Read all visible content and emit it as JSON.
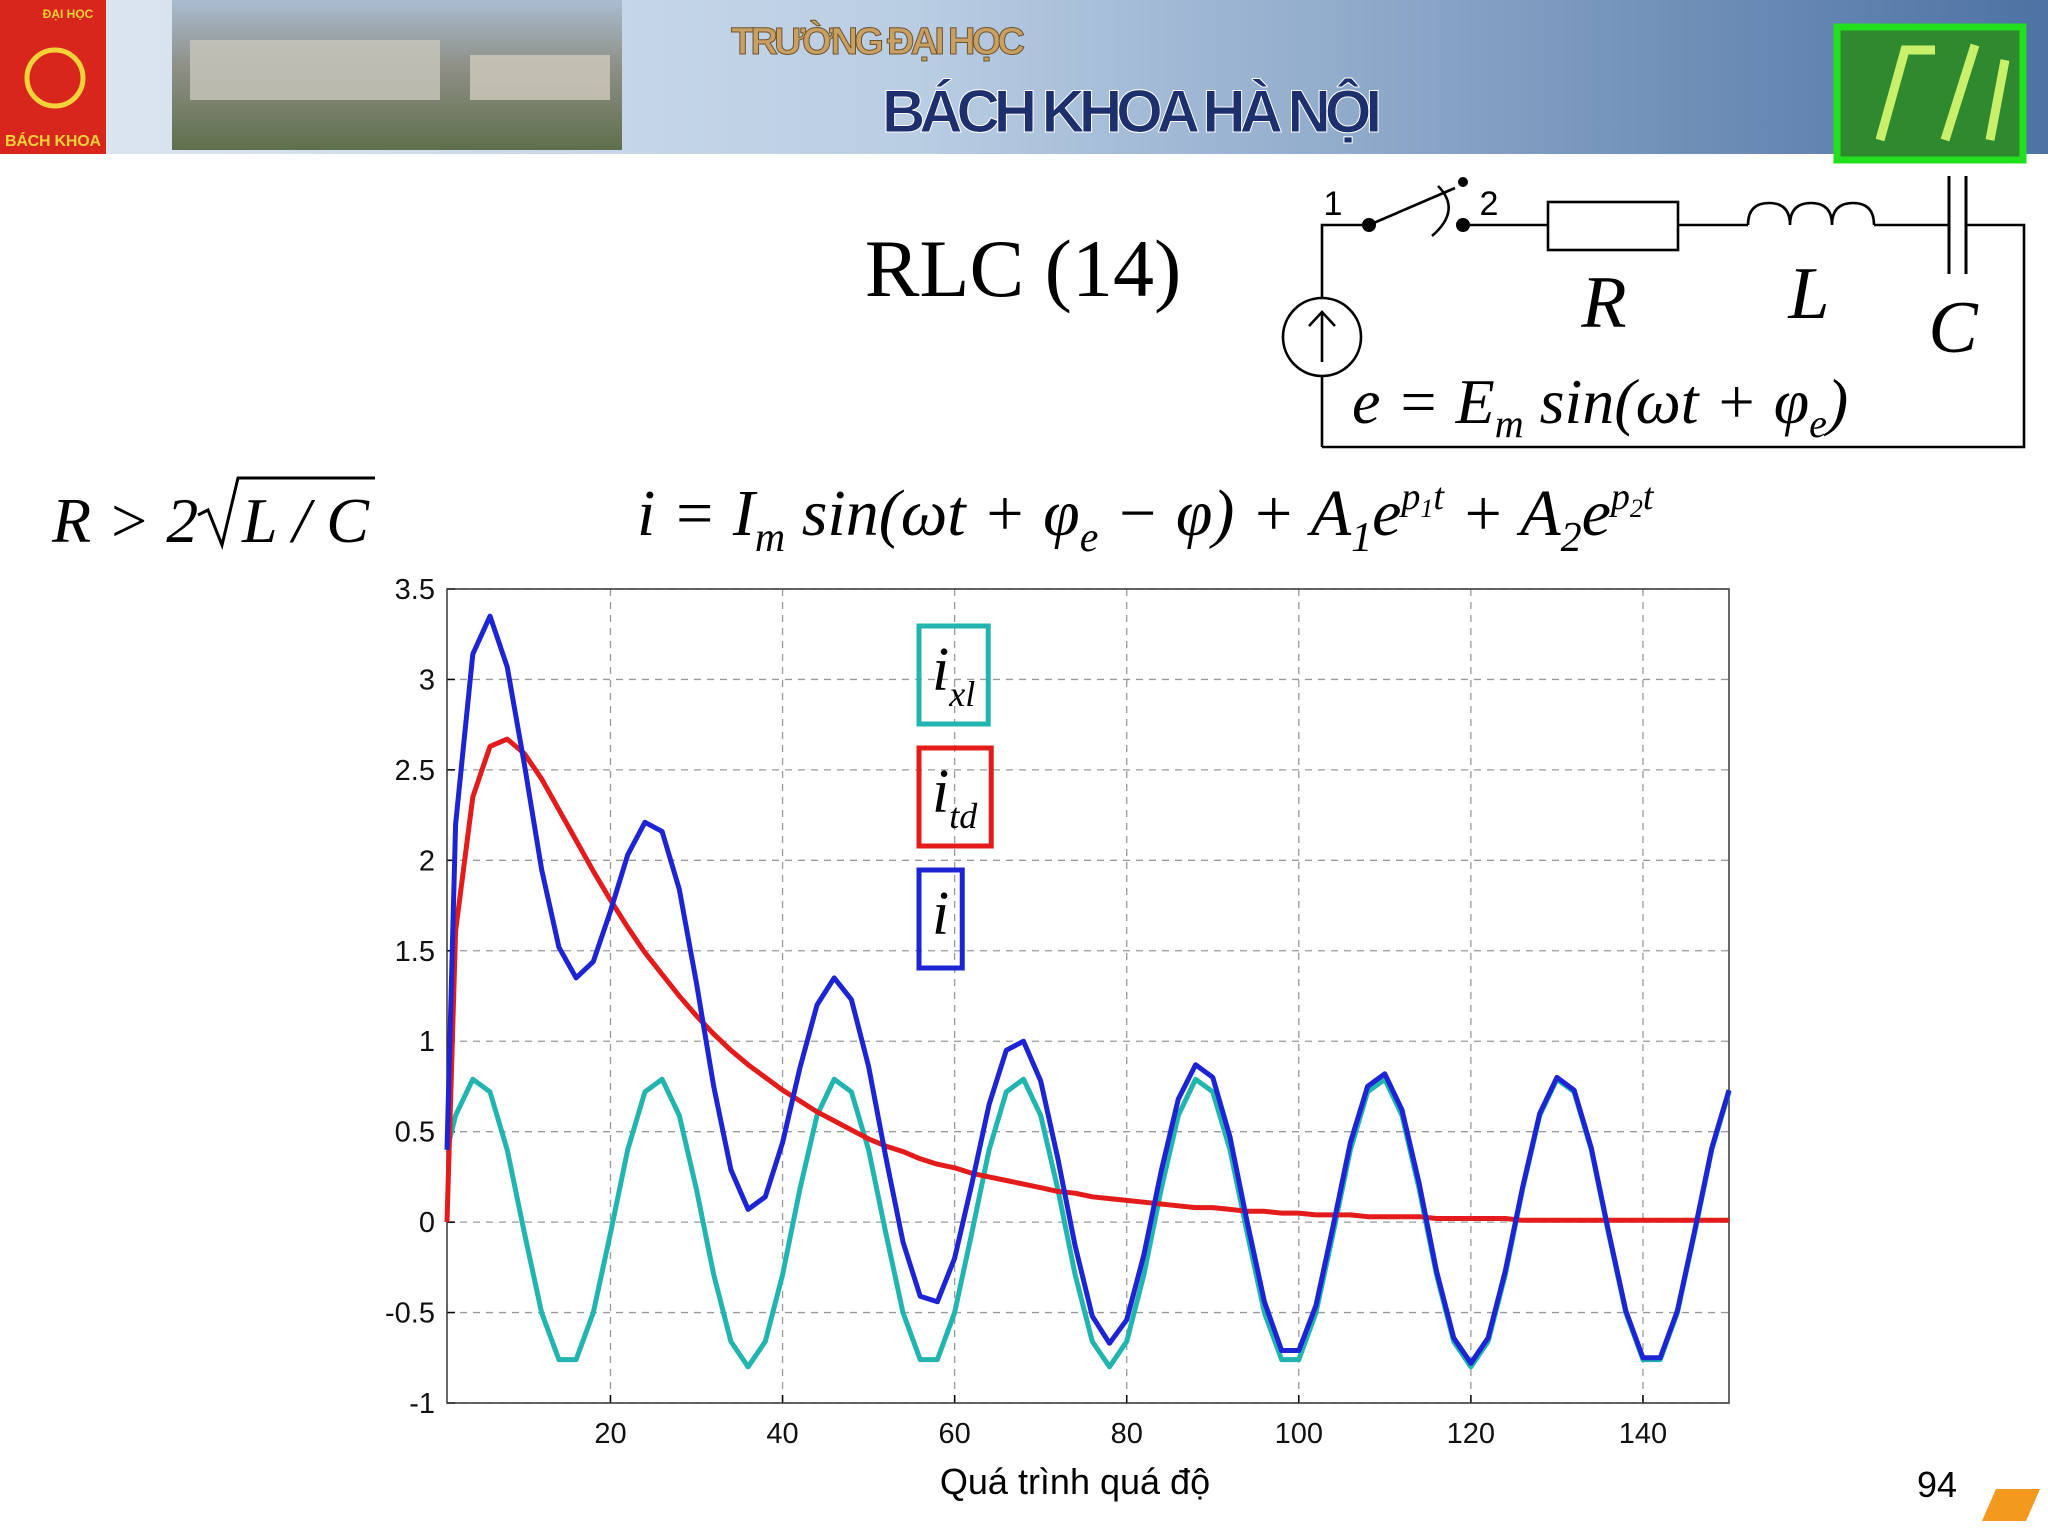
{
  "header": {
    "school_line1": "TRƯỜNG ĐẠI HỌC",
    "school_line2": "BÁCH KHOA HÀ NỘI",
    "logo_top": "ĐẠI HỌC",
    "logo_bottom": "BÁCH KHOA"
  },
  "title": "RLC (14)",
  "condition": [
    "R > 2",
    "L / C"
  ],
  "formula": [
    "i = I",
    "m",
    " sin(ωt + φ",
    "e",
    " − φ) + A",
    "1",
    "e",
    "p",
    "1",
    "t",
    " + A",
    "2",
    "e",
    "p",
    "2",
    "t"
  ],
  "circuit": {
    "node1": "1",
    "node2": "2",
    "R": "R",
    "L": "L",
    "C": "C",
    "source_formula": [
      "e = E",
      "m",
      " sin(ωt + φ",
      "e",
      ")"
    ]
  },
  "chart_data": {
    "type": "line",
    "xlabel": "Quá trình quá độ",
    "x": [
      1,
      2,
      4,
      6,
      8,
      10,
      12,
      14,
      16,
      18,
      20,
      22,
      24,
      26,
      28,
      30,
      32,
      34,
      36,
      38,
      40,
      42,
      44,
      46,
      48,
      50,
      52,
      54,
      56,
      58,
      60,
      62,
      64,
      66,
      68,
      70,
      72,
      74,
      76,
      78,
      80,
      82,
      84,
      86,
      88,
      90,
      92,
      94,
      96,
      98,
      100,
      102,
      104,
      106,
      108,
      110,
      112,
      114,
      116,
      118,
      120,
      122,
      124,
      126,
      128,
      130,
      132,
      134,
      136,
      138,
      140,
      142,
      144,
      146,
      148,
      150
    ],
    "series": [
      {
        "name": "ixl",
        "color": "#22b4ae",
        "values": [
          0.4,
          0.59,
          0.79,
          0.72,
          0.4,
          -0.06,
          -0.5,
          -0.76,
          -0.76,
          -0.5,
          -0.06,
          0.4,
          0.72,
          0.79,
          0.59,
          0.18,
          -0.29,
          -0.66,
          -0.8,
          -0.66,
          -0.29,
          0.18,
          0.59,
          0.79,
          0.72,
          0.4,
          -0.06,
          -0.5,
          -0.76,
          -0.76,
          -0.5,
          -0.06,
          0.4,
          0.72,
          0.79,
          0.59,
          0.18,
          -0.29,
          -0.66,
          -0.8,
          -0.66,
          -0.29,
          0.18,
          0.59,
          0.79,
          0.72,
          0.4,
          -0.06,
          -0.5,
          -0.76,
          -0.76,
          -0.5,
          -0.06,
          0.4,
          0.72,
          0.79,
          0.59,
          0.18,
          -0.29,
          -0.66,
          -0.8,
          -0.66,
          -0.29,
          0.18,
          0.59,
          0.79,
          0.72,
          0.4,
          -0.06,
          -0.5,
          -0.76,
          -0.76,
          -0.5,
          -0.06,
          0.4,
          0.72
        ]
      },
      {
        "name": "itd",
        "color": "#e41b1b",
        "values": [
          0,
          1.61,
          2.35,
          2.63,
          2.67,
          2.59,
          2.45,
          2.28,
          2.11,
          1.94,
          1.78,
          1.63,
          1.49,
          1.37,
          1.25,
          1.14,
          1.04,
          0.95,
          0.87,
          0.8,
          0.73,
          0.67,
          0.61,
          0.56,
          0.51,
          0.46,
          0.42,
          0.39,
          0.35,
          0.32,
          0.3,
          0.27,
          0.25,
          0.23,
          0.21,
          0.19,
          0.17,
          0.16,
          0.14,
          0.13,
          0.12,
          0.11,
          0.1,
          0.09,
          0.08,
          0.08,
          0.07,
          0.06,
          0.06,
          0.05,
          0.05,
          0.04,
          0.04,
          0.04,
          0.03,
          0.03,
          0.03,
          0.03,
          0.02,
          0.02,
          0.02,
          0.02,
          0.02,
          0.01,
          0.01,
          0.01,
          0.01,
          0.01,
          0.01,
          0.01,
          0.01,
          0.01,
          0.01,
          0.01,
          0.01,
          0.01
        ]
      },
      {
        "name": "i",
        "color": "#1c24d4",
        "values": [
          0.4,
          2.2,
          3.14,
          3.35,
          3.07,
          2.53,
          1.95,
          1.52,
          1.35,
          1.44,
          1.72,
          2.03,
          2.21,
          2.16,
          1.84,
          1.32,
          0.75,
          0.29,
          0.07,
          0.14,
          0.44,
          0.85,
          1.2,
          1.35,
          1.23,
          0.86,
          0.36,
          -0.11,
          -0.41,
          -0.44,
          -0.2,
          0.21,
          0.65,
          0.95,
          1.0,
          0.78,
          0.35,
          -0.13,
          -0.52,
          -0.67,
          -0.54,
          -0.18,
          0.28,
          0.68,
          0.87,
          0.8,
          0.47,
          0,
          -0.44,
          -0.71,
          -0.71,
          -0.46,
          -0.02,
          0.44,
          0.75,
          0.82,
          0.62,
          0.21,
          -0.27,
          -0.64,
          -0.78,
          -0.64,
          -0.27,
          0.19,
          0.6,
          0.8,
          0.73,
          0.41,
          -0.05,
          -0.49,
          -0.75,
          -0.75,
          -0.49,
          -0.05,
          0.41,
          0.73
        ]
      }
    ],
    "xlim": [
      1,
      150
    ],
    "ylim": [
      -1,
      3.5
    ],
    "xticks": [
      20,
      40,
      60,
      80,
      100,
      120,
      140
    ],
    "yticks": [
      -1,
      -0.5,
      0,
      0.5,
      1,
      1.5,
      2,
      2.5,
      3,
      3.5
    ],
    "grid": true
  },
  "page_number": 94
}
